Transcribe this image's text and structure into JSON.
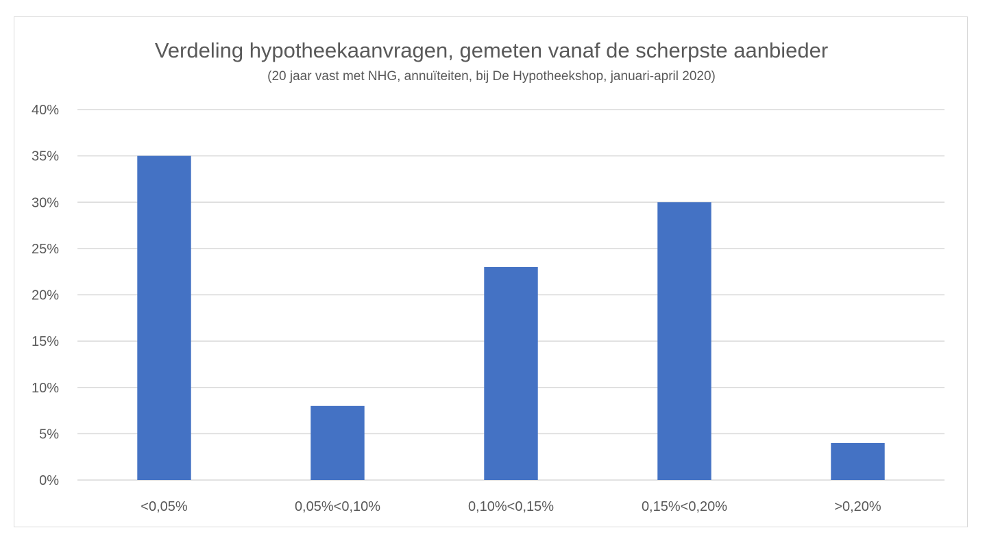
{
  "chart_data": {
    "type": "bar",
    "title": "Verdeling hypotheekaanvragen, gemeten vanaf de scherpste aanbieder",
    "subtitle": "(20 jaar vast met NHG, annuïteiten, bij De Hypotheekshop, januari-april 2020)",
    "categories": [
      "<0,05%",
      "0,05%<0,10%",
      "0,10%<0,15%",
      "0,15%<0,20%",
      ">0,20%"
    ],
    "values": [
      35,
      8,
      23,
      30,
      4
    ],
    "value_unit": "%",
    "ylim": [
      0,
      40
    ],
    "yticks": [
      0,
      5,
      10,
      15,
      20,
      25,
      30,
      35,
      40
    ],
    "ytick_labels": [
      "0%",
      "5%",
      "10%",
      "15%",
      "20%",
      "25%",
      "30%",
      "35%",
      "40%"
    ],
    "xlabel": "",
    "ylabel": "",
    "grid": true,
    "legend": "none",
    "colors": {
      "bar": "#4472C4",
      "grid": "#d9d9d9",
      "text": "#595959",
      "border": "#d9d9d9"
    }
  }
}
